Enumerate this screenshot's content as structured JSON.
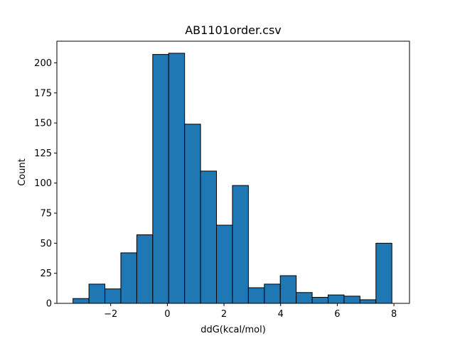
{
  "colors": {
    "bar_fill": "#1f77b4",
    "bar_edge": "#000000",
    "background": "#ffffff",
    "axis": "#000000"
  },
  "chart_data": {
    "type": "bar",
    "title": "AB1101order.csv",
    "xlabel": "ddG(kcal/mol)",
    "ylabel": "Count",
    "grid": false,
    "legend": "none",
    "xlim": [
      -3.9,
      8.55
    ],
    "ylim": [
      0,
      218
    ],
    "bin_width": 0.5629,
    "bin_edges": [
      -3.33,
      -2.7671,
      -2.2042,
      -1.6413,
      -1.0784,
      -0.5155,
      0.0474,
      0.6103,
      1.1732,
      1.7361,
      2.299,
      2.8619,
      3.4248,
      3.9877,
      4.5506,
      5.1135,
      5.6764,
      6.2393,
      6.8022,
      7.3651,
      7.928
    ],
    "values": [
      4,
      16,
      12,
      42,
      57,
      207,
      208,
      149,
      110,
      65,
      98,
      13,
      16,
      23,
      9,
      5,
      7,
      6,
      3,
      50
    ],
    "x_ticks": [
      -2,
      0,
      2,
      4,
      6,
      8
    ],
    "x_tick_labels": [
      "−2",
      "0",
      "2",
      "4",
      "6",
      "8"
    ],
    "y_ticks": [
      0,
      25,
      50,
      75,
      100,
      125,
      150,
      175,
      200
    ],
    "y_tick_labels": [
      "0",
      "25",
      "50",
      "75",
      "100",
      "125",
      "150",
      "175",
      "200"
    ]
  }
}
